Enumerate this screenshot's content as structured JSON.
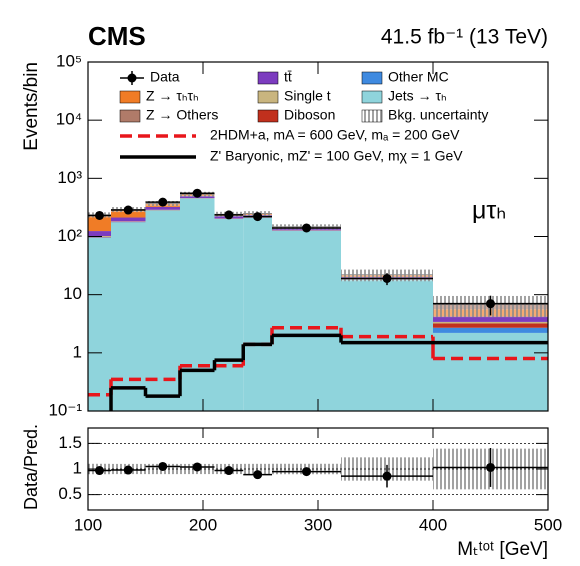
{
  "chart_data": {
    "type": "histogram",
    "title": "CMS",
    "subtitle": "41.5 fb⁻¹ (13 TeV)",
    "annotation": "μτₕ",
    "xlabel": "Mₜᵗᵒᵗ [GeV]",
    "ylabel": "Events/bin",
    "log_y": true,
    "bins": [
      100,
      120,
      150,
      180,
      210,
      235,
      260,
      320,
      400,
      500
    ],
    "xlim": [
      100,
      500
    ],
    "xticks": [
      100,
      200,
      300,
      400,
      500
    ],
    "ylim": [
      0.1,
      100000
    ],
    "yticks": [
      {
        "value": 0.1,
        "label": "10⁻¹"
      },
      1,
      10,
      {
        "value": 100,
        "label": "10²"
      },
      {
        "value": 1000,
        "label": "10³"
      },
      {
        "value": 10000,
        "label": "10⁴"
      },
      {
        "value": 100000,
        "label": "10⁵"
      }
    ],
    "series": [
      {
        "name": "Jets → τₕ",
        "color": "#8fd4dc",
        "values": [
          95,
          175,
          280,
          450,
          200,
          210,
          125,
          18,
          2.2
        ]
      },
      {
        "name": "Other MC",
        "color": "#3f8ae0",
        "values": [
          2,
          2,
          2,
          2,
          1,
          1,
          1,
          0.3,
          0.5
        ]
      },
      {
        "name": "Diboson",
        "color": "#c1301d",
        "values": [
          2,
          2,
          2,
          2,
          1,
          1,
          1,
          0.4,
          0.5
        ]
      },
      {
        "name": "Single t",
        "color": "#c9b57f",
        "values": [
          3,
          3,
          4,
          4,
          2,
          2,
          1,
          0.4,
          0.2
        ]
      },
      {
        "name": "tt̄",
        "color": "#7c3cbf",
        "values": [
          22,
          30,
          35,
          40,
          22,
          20,
          10,
          1.2,
          0.8
        ]
      },
      {
        "name": "Z → τₕτₕ",
        "color": "#f07c26",
        "values": [
          100,
          70,
          40,
          30,
          12,
          10,
          6,
          1.2,
          1.4
        ]
      },
      {
        "name": "Z → Others",
        "color": "#b07b69",
        "values": [
          12,
          10,
          8,
          6,
          4,
          4,
          3,
          0.5,
          1.2
        ]
      }
    ],
    "uncertainty": {
      "name": "Bkg. uncertainty",
      "color": "#999999",
      "values": [
        24,
        29,
        37,
        53,
        24,
        25,
        15,
        5,
        2.7
      ]
    },
    "data": {
      "name": "Data",
      "color": "#000000",
      "values": [
        230,
        285,
        390,
        555,
        235,
        220,
        140,
        19,
        7
      ],
      "errors": [
        15,
        17,
        20,
        24,
        15,
        15,
        12,
        4.4,
        2.6
      ]
    },
    "signals": [
      {
        "name": "2HDM+a, mA = 600 GeV, mₐ = 200 GeV",
        "color": "#e8161b",
        "dashed": true,
        "values": [
          0.19,
          0.35,
          0.35,
          0.6,
          0.6,
          1.4,
          2.7,
          1.9,
          0.8
        ]
      },
      {
        "name": "Z' Baryonic, mZ' = 100 GeV, mχ = 1 GeV",
        "color": "#000000",
        "dashed": false,
        "values": [
          0.08,
          0.25,
          0.18,
          0.5,
          0.75,
          1.4,
          2.0,
          1.5,
          1.5
        ]
      }
    ],
    "ratio": {
      "ylabel": "Data/Pred.",
      "ylim": [
        0.2,
        1.8
      ],
      "yticks": [
        0.5,
        1,
        1.5
      ],
      "grid": true,
      "values": [
        0.97,
        0.98,
        1.05,
        1.04,
        0.97,
        0.89,
        0.95,
        0.86,
        1.03
      ],
      "errors": [
        0.06,
        0.06,
        0.05,
        0.04,
        0.06,
        0.07,
        0.08,
        0.22,
        0.38
      ]
    }
  }
}
